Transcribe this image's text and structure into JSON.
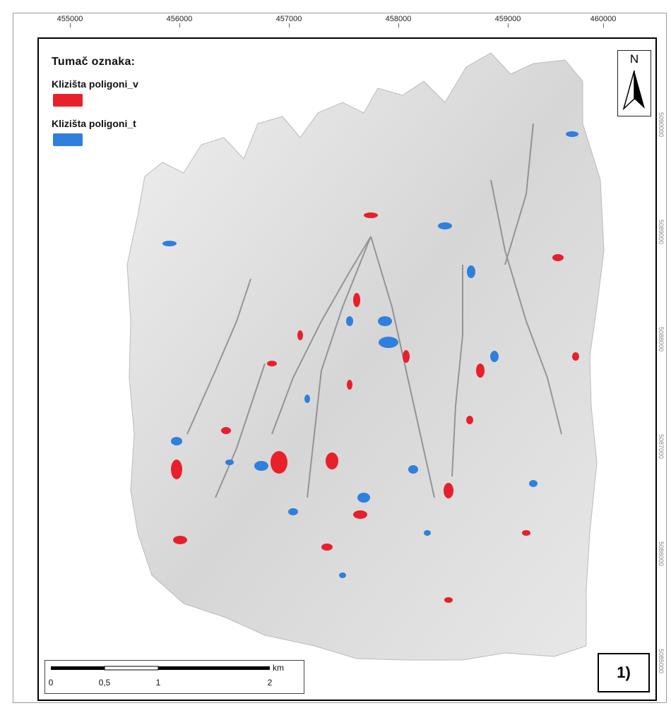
{
  "map": {
    "top_ticks": [
      "455000",
      "456000",
      "457000",
      "458000",
      "459000",
      "460000"
    ],
    "right_ticks": [
      "5090000",
      "5089000",
      "5088000",
      "5087000",
      "5086000",
      "5085000"
    ],
    "legend": {
      "title": "Tumač oznaka:",
      "items": [
        {
          "label": "Klizišta poligoni_v",
          "color": "#e8202a"
        },
        {
          "label": "Klizišta poligoni_t",
          "color": "#2f7fdc"
        }
      ]
    },
    "north_label": "N",
    "scalebar": {
      "labels": [
        "0",
        "0,5",
        "1",
        "2"
      ],
      "unit": "km"
    },
    "panel_label": "1)"
  }
}
